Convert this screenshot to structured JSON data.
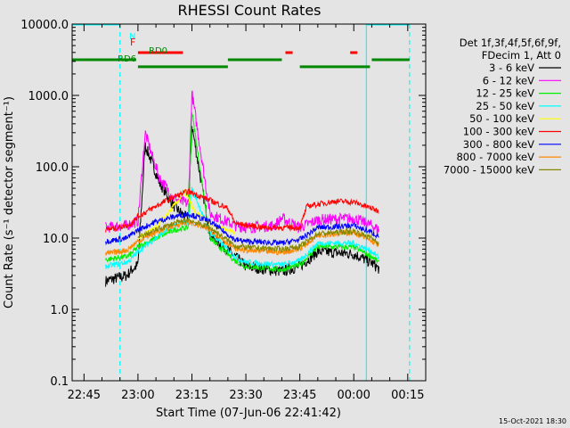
{
  "chart_data": {
    "type": "line",
    "title": "RHESSI Count Rates",
    "xlabel": "Start Time (07-Jun-06 22:41:42)",
    "ylabel": "Count Rate (s⁻¹ detector segment⁻¹)",
    "yscale": "log",
    "ylim": [
      0.1,
      10000
    ],
    "y_ticks": [
      {
        "v": 0.1,
        "label": "0.1"
      },
      {
        "v": 1,
        "label": "1.0"
      },
      {
        "v": 10,
        "label": "10.0"
      },
      {
        "v": 100,
        "label": "100.0"
      },
      {
        "v": 1000,
        "label": "1000.0"
      },
      {
        "v": 10000,
        "label": "10000.0"
      }
    ],
    "xlim": [
      "22:41:42",
      "00:20:00"
    ],
    "x_ticks": [
      "22:45",
      "23:00",
      "23:15",
      "23:30",
      "23:45",
      "00:00",
      "00:15"
    ],
    "legend_position": "right",
    "legend_header": [
      "Det 1f,3f,4f,5f,6f,9f,",
      "FDecim 1, Att 0"
    ],
    "series": [
      {
        "name": "3 - 6 keV",
        "color": "#000000",
        "x": [
          "22:51",
          "22:57",
          "22:58",
          "23:00",
          "23:02",
          "23:04",
          "23:06",
          "23:10",
          "23:14",
          "23:15",
          "23:20",
          "23:27",
          "23:30",
          "23:40",
          "23:45",
          "23:50",
          "00:00",
          "00:05",
          "00:07"
        ],
        "y": [
          2.5,
          3.0,
          3.5,
          4.2,
          200,
          110,
          60,
          28,
          18,
          380,
          11,
          5.5,
          4.0,
          3.4,
          4.0,
          6.5,
          6.0,
          4.5,
          3.7
        ]
      },
      {
        "name": "6 - 12 keV",
        "color": "#ff00ff",
        "x": [
          "22:51",
          "22:57",
          "22:58",
          "23:00",
          "23:02",
          "23:04",
          "23:06",
          "23:10",
          "23:14",
          "23:15",
          "23:20",
          "23:27",
          "23:30",
          "23:38",
          "23:40",
          "23:45",
          "23:50",
          "00:00",
          "00:05",
          "00:07"
        ],
        "y": [
          14,
          15,
          16,
          17,
          300,
          140,
          70,
          36,
          30,
          1100,
          22,
          15,
          14,
          15,
          19,
          14,
          18,
          19,
          15,
          13
        ]
      },
      {
        "name": "12 - 25 keV",
        "color": "#00ee00",
        "x": [
          "22:51",
          "22:57",
          "22:58",
          "23:00",
          "23:05",
          "23:10",
          "23:14",
          "23:15",
          "23:20",
          "23:27",
          "23:30",
          "23:40",
          "23:45",
          "23:50",
          "00:00",
          "00:05",
          "00:07"
        ],
        "y": [
          5.0,
          5.5,
          6.0,
          7.5,
          10,
          13,
          14,
          600,
          10,
          4.8,
          4.0,
          3.6,
          4.2,
          7.5,
          7.5,
          5.5,
          4.5
        ]
      },
      {
        "name": "25 - 50 keV",
        "color": "#00ffff",
        "x": [
          "22:51",
          "22:57",
          "22:58",
          "23:00",
          "23:05",
          "23:10",
          "23:14",
          "23:15",
          "23:20",
          "23:27",
          "23:30",
          "23:40",
          "23:45",
          "23:50",
          "00:00",
          "00:05",
          "00:07"
        ],
        "y": [
          4.0,
          4.6,
          5.0,
          6.5,
          10,
          15,
          17,
          50,
          12,
          5.5,
          4.6,
          4.2,
          4.8,
          8.5,
          8.5,
          6.5,
          5.3
        ]
      },
      {
        "name": "50 - 100 keV",
        "color": "#ffff00",
        "x": [
          "23:00",
          "23:05",
          "23:10",
          "23:13",
          "23:16",
          "23:20",
          "23:27"
        ],
        "y": [
          10,
          14,
          28,
          45,
          22,
          16,
          12
        ]
      },
      {
        "name": "100 - 300 keV",
        "color": "#ff0000",
        "x": [
          "22:51",
          "22:57",
          "22:58",
          "23:00",
          "23:05",
          "23:10",
          "23:14",
          "23:20",
          "23:25",
          "23:27",
          "23:35",
          "23:45",
          "23:47",
          "23:55",
          "00:00",
          "00:05",
          "00:07"
        ],
        "y": [
          13,
          15,
          16,
          20,
          28,
          38,
          45,
          34,
          26,
          16,
          14,
          14,
          28,
          33,
          32,
          26,
          24
        ]
      },
      {
        "name": "300 - 800 keV",
        "color": "#0000ff",
        "x": [
          "22:51",
          "22:57",
          "22:58",
          "23:00",
          "23:05",
          "23:10",
          "23:14",
          "23:20",
          "23:27",
          "23:30",
          "23:40",
          "23:45",
          "23:50",
          "00:00",
          "00:05",
          "00:07"
        ],
        "y": [
          9,
          10,
          11,
          13,
          17,
          20,
          22,
          17,
          9.5,
          9,
          8.5,
          9.5,
          14,
          15,
          12,
          10.5
        ]
      },
      {
        "name": "800 - 7000 keV",
        "color": "#ff8800",
        "x": [
          "22:51",
          "22:57",
          "22:58",
          "23:00",
          "23:05",
          "23:10",
          "23:14",
          "23:20",
          "23:27",
          "23:30",
          "23:40",
          "23:45",
          "23:50",
          "00:00",
          "00:05",
          "00:07"
        ],
        "y": [
          6,
          6.8,
          7.5,
          9,
          12,
          15,
          17,
          13,
          7.2,
          6.7,
          6.3,
          7,
          11,
          12,
          9,
          8
        ]
      },
      {
        "name": "7000 - 15000 keV",
        "color": "#888800",
        "x": [
          "23:00",
          "23:05",
          "23:10",
          "23:14",
          "23:20",
          "23:27",
          "23:30",
          "23:40",
          "23:45",
          "23:50",
          "00:00",
          "00:05",
          "00:07"
        ],
        "y": [
          10,
          13,
          16,
          18,
          14,
          7.8,
          7.4,
          7,
          7.6,
          11.5,
          12.5,
          10,
          8.6
        ]
      }
    ],
    "state_bars": [
      {
        "label": "N",
        "label_color": "#00ffff",
        "color": "#00ffff",
        "y": 10000,
        "segments": [
          [
            "22:41:42",
            "22:55:00"
          ],
          [
            "00:03:30",
            "00:15:30"
          ]
        ]
      },
      {
        "label": "F",
        "label_color": "#ff0000",
        "color": "#ff0000",
        "y": 3980,
        "segments": [
          [
            "23:00:00",
            "23:12:30"
          ],
          [
            "23:41:00",
            "23:43:00"
          ],
          [
            "23:59:00",
            "00:01:00"
          ]
        ]
      },
      {
        "label": "RD0",
        "label_color": "#008800",
        "color": "#008800",
        "y": 3160,
        "segments": [
          [
            "22:41:42",
            "22:59:30"
          ],
          [
            "23:25:00",
            "23:40:00"
          ],
          [
            "00:05:00",
            "00:15:30"
          ]
        ]
      },
      {
        "label": "RD6",
        "label_color": "#008800",
        "color": "#008800",
        "y": 2520,
        "segments": [
          [
            "23:00:00",
            "23:25:00"
          ],
          [
            "23:45:00",
            "00:04:30"
          ]
        ]
      }
    ],
    "vlines": [
      {
        "x": "22:41:42",
        "color": "#00ffff",
        "style": "solid"
      },
      {
        "x": "22:55:00",
        "color": "#00ffff",
        "style": "dashed"
      },
      {
        "x": "00:03:30",
        "color": "#00ffff",
        "style": "solid"
      },
      {
        "x": "00:15:30",
        "color": "#00ffff",
        "style": "dashed"
      }
    ]
  },
  "footer": {
    "timestamp": "15-Oct-2021 18:30"
  }
}
